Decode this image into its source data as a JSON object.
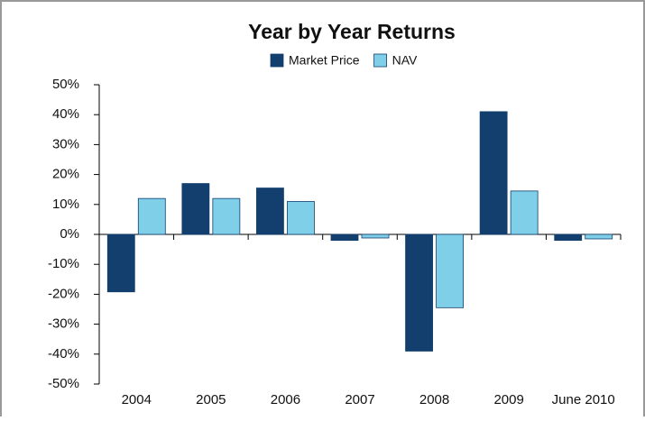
{
  "chart_data": {
    "type": "bar",
    "title": "Year by Year Returns",
    "categories": [
      "2004",
      "2005",
      "2006",
      "2007",
      "2008",
      "2009",
      "June 2010"
    ],
    "series": [
      {
        "name": "Market Price",
        "color": "#123f6e",
        "values": [
          -19.2,
          17,
          15.5,
          -2,
          -39,
          41,
          -2
        ]
      },
      {
        "name": "NAV",
        "color": "#7fcfe9",
        "values": [
          12,
          12,
          11,
          -1.2,
          -24.5,
          14.5,
          -1.5
        ]
      }
    ],
    "ylim": [
      -50,
      50
    ],
    "yticks": [
      {
        "value": -50,
        "label": "-50%"
      },
      {
        "value": -40,
        "label": "-40%"
      },
      {
        "value": -30,
        "label": "-30%"
      },
      {
        "value": -20,
        "label": "-20%"
      },
      {
        "value": -10,
        "label": "-10%"
      },
      {
        "value": 0,
        "label": "0%"
      },
      {
        "value": 10,
        "label": "10%"
      },
      {
        "value": 20,
        "label": "20%"
      },
      {
        "value": 30,
        "label": "30%"
      },
      {
        "value": 40,
        "label": "40%"
      },
      {
        "value": 50,
        "label": "50%"
      }
    ],
    "legend": "top"
  }
}
